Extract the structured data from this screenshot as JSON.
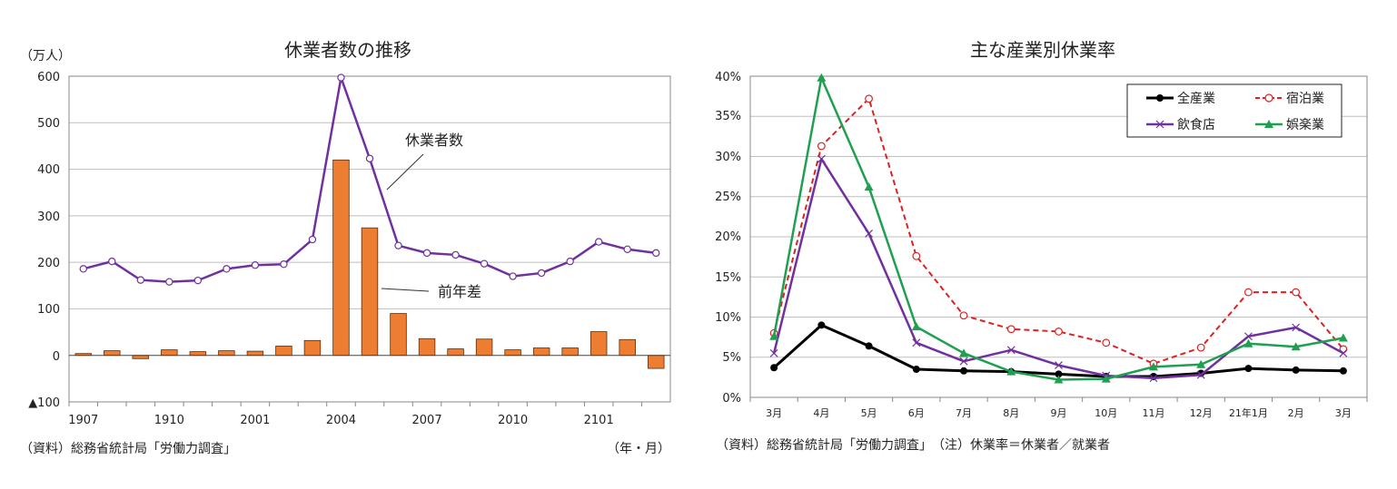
{
  "left_chart": {
    "title": "休業者数の推移",
    "unit": "（万人）",
    "source": "（資料）総務省統計局「労働力調査」",
    "x_unit": "（年・月）",
    "line_label": "休業者数",
    "bar_label": "前年差",
    "y_ticks": [
      "600",
      "500",
      "400",
      "300",
      "200",
      "100",
      "0",
      "▲100"
    ],
    "x_ticks": [
      "1907",
      "1910",
      "2001",
      "2004",
      "2007",
      "2010",
      "2101"
    ]
  },
  "right_chart": {
    "title": "主な産業別休業率",
    "source": "（資料）総務省統計局「労働力調査」　（注）休業率＝休業者／就業者",
    "y_ticks": [
      "40%",
      "35%",
      "30%",
      "25%",
      "20%",
      "15%",
      "10%",
      "5%",
      "0%"
    ],
    "x_ticks": [
      "3月",
      "4月",
      "5月",
      "6月",
      "7月",
      "8月",
      "9月",
      "10月",
      "11月",
      "12月",
      "21年1月",
      "2月",
      "3月"
    ],
    "legend": [
      "全産業",
      "宿泊業",
      "飲食店",
      "娯楽業"
    ]
  },
  "colors": {
    "purple": "#7030A0",
    "orange": "#ED7D31",
    "black": "#000000",
    "red": "#E02020",
    "green": "#1FA050"
  },
  "chart_data": [
    {
      "type": "bar",
      "title": "休業者数の推移",
      "ylabel": "（万人）",
      "xlabel": "（年・月）",
      "ylim": [
        -100,
        600
      ],
      "x": [
        "1907",
        "1908",
        "1909",
        "1910",
        "1911",
        "1912",
        "2001",
        "2002",
        "2003",
        "2004",
        "2005",
        "2006",
        "2007",
        "2008",
        "2009",
        "2010",
        "2011",
        "2012",
        "2101",
        "2102",
        "2103"
      ],
      "series": [
        {
          "name": "休業者数",
          "type": "line",
          "values": [
            186,
            202,
            162,
            158,
            161,
            186,
            194,
            196,
            249,
            597,
            423,
            236,
            220,
            216,
            197,
            170,
            177,
            202,
            244,
            228,
            220
          ]
        },
        {
          "name": "前年差",
          "type": "bar",
          "values": [
            4,
            10,
            -7,
            12,
            8,
            10,
            9,
            20,
            32,
            420,
            274,
            90,
            36,
            14,
            35,
            12,
            16,
            16,
            51,
            34,
            -28
          ]
        }
      ]
    },
    {
      "type": "line",
      "title": "主な産業別休業率",
      "ylim": [
        0,
        40
      ],
      "categories": [
        "3月",
        "4月",
        "5月",
        "6月",
        "7月",
        "8月",
        "9月",
        "10月",
        "11月",
        "12月",
        "21年1月",
        "2月",
        "3月"
      ],
      "series": [
        {
          "name": "全産業",
          "values": [
            3.7,
            9.0,
            6.4,
            3.5,
            3.3,
            3.2,
            2.9,
            2.6,
            2.6,
            3.0,
            3.6,
            3.4,
            3.3
          ]
        },
        {
          "name": "宿泊業",
          "values": [
            8.0,
            31.3,
            37.2,
            17.6,
            10.2,
            8.5,
            8.2,
            6.8,
            4.2,
            6.2,
            13.1,
            13.1,
            6.0
          ]
        },
        {
          "name": "飲食店",
          "values": [
            5.5,
            29.7,
            20.4,
            6.8,
            4.5,
            5.9,
            4.0,
            2.7,
            2.4,
            2.8,
            7.6,
            8.7,
            5.5
          ]
        },
        {
          "name": "娯楽業",
          "values": [
            7.6,
            39.8,
            26.2,
            8.8,
            5.5,
            3.2,
            2.2,
            2.3,
            3.8,
            4.1,
            6.7,
            6.3,
            7.4
          ]
        }
      ]
    }
  ]
}
